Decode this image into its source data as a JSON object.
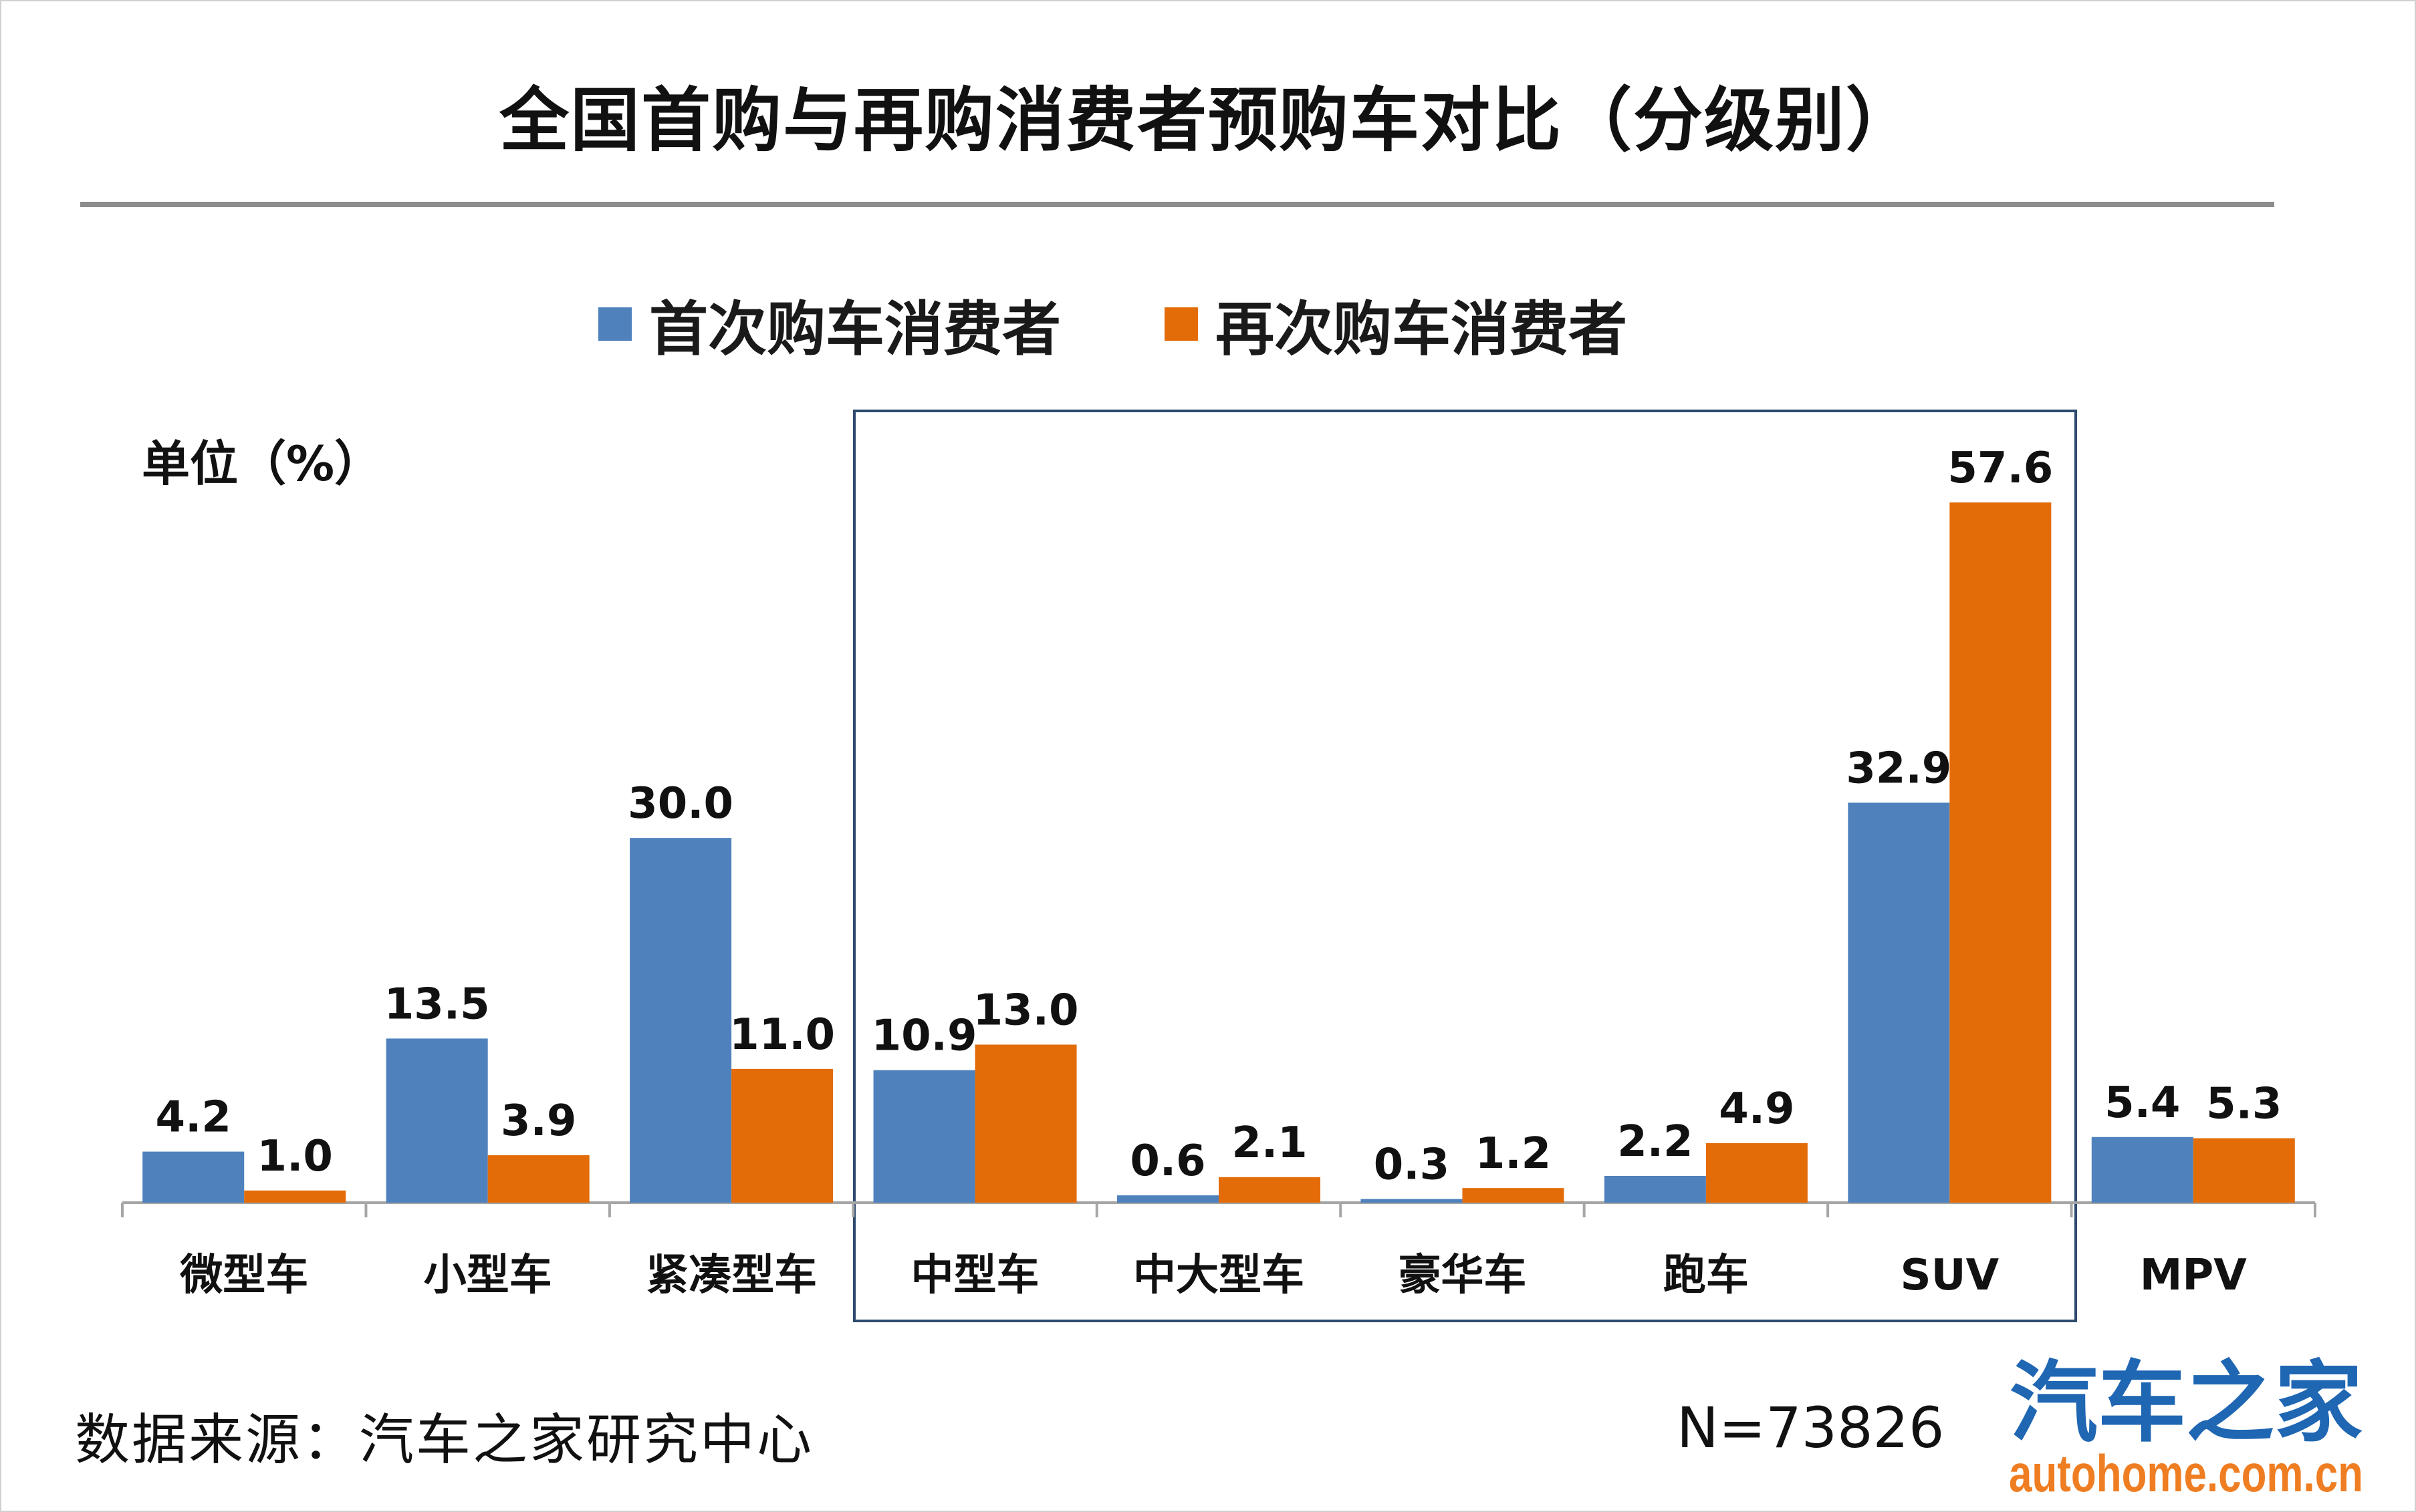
{
  "title": "全国首购与再购消费者预购车对比（分级别）",
  "unit_label": "单位（%）",
  "source": "数据来源：汽车之家研究中心",
  "sample": "N=73826",
  "logo": {
    "name": "汽车之家",
    "url": "autohome.com.cn"
  },
  "colors": {
    "first": "#4f81bd",
    "repeat": "#e36c09",
    "highlight_box": "#2e4a6e",
    "axis": "#a6a6a6",
    "logo_blue": "#1f66b3",
    "logo_orange": "#ef7d22"
  },
  "chart_data": {
    "type": "bar",
    "categories": [
      "微型车",
      "小型车",
      "紧凑型车",
      "中型车",
      "中大型车",
      "豪华车",
      "跑车",
      "SUV",
      "MPV"
    ],
    "series": [
      {
        "name": "首次购车消费者",
        "values": [
          4.2,
          13.5,
          30.0,
          10.9,
          0.6,
          0.3,
          2.2,
          32.9,
          5.4
        ]
      },
      {
        "name": "再次购车消费者",
        "values": [
          1.0,
          3.9,
          11.0,
          13.0,
          2.1,
          1.2,
          4.9,
          57.6,
          5.3
        ]
      }
    ],
    "ylim": [
      0,
      60
    ],
    "grid": false,
    "legend": "top",
    "highlight": "中型车 to SUV"
  }
}
